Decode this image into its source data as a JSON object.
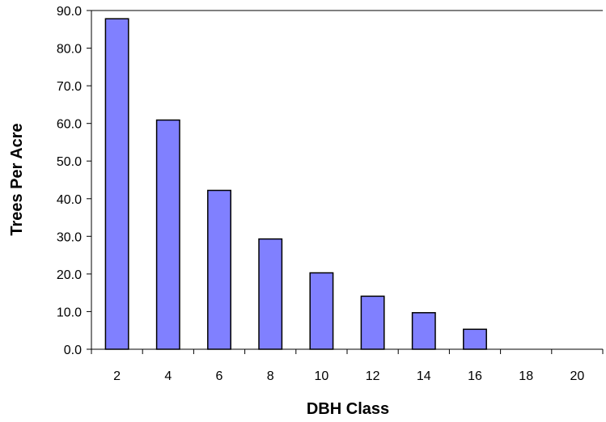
{
  "chart_data": {
    "type": "bar",
    "categories": [
      "2",
      "4",
      "6",
      "8",
      "10",
      "12",
      "14",
      "16",
      "18",
      "20"
    ],
    "values": [
      87.8,
      60.9,
      42.2,
      29.3,
      20.3,
      14.1,
      9.7,
      5.3,
      0,
      0
    ],
    "title": "",
    "xlabel": "DBH Class",
    "ylabel": "Trees Per Acre",
    "ylim": [
      0,
      90
    ],
    "yticks": [
      "0.0",
      "10.0",
      "20.0",
      "30.0",
      "40.0",
      "50.0",
      "60.0",
      "70.0",
      "80.0",
      "90.0"
    ],
    "grid": false,
    "legend": "none",
    "bar_color": "#8080ff",
    "bar_edge_color": "#000000"
  }
}
